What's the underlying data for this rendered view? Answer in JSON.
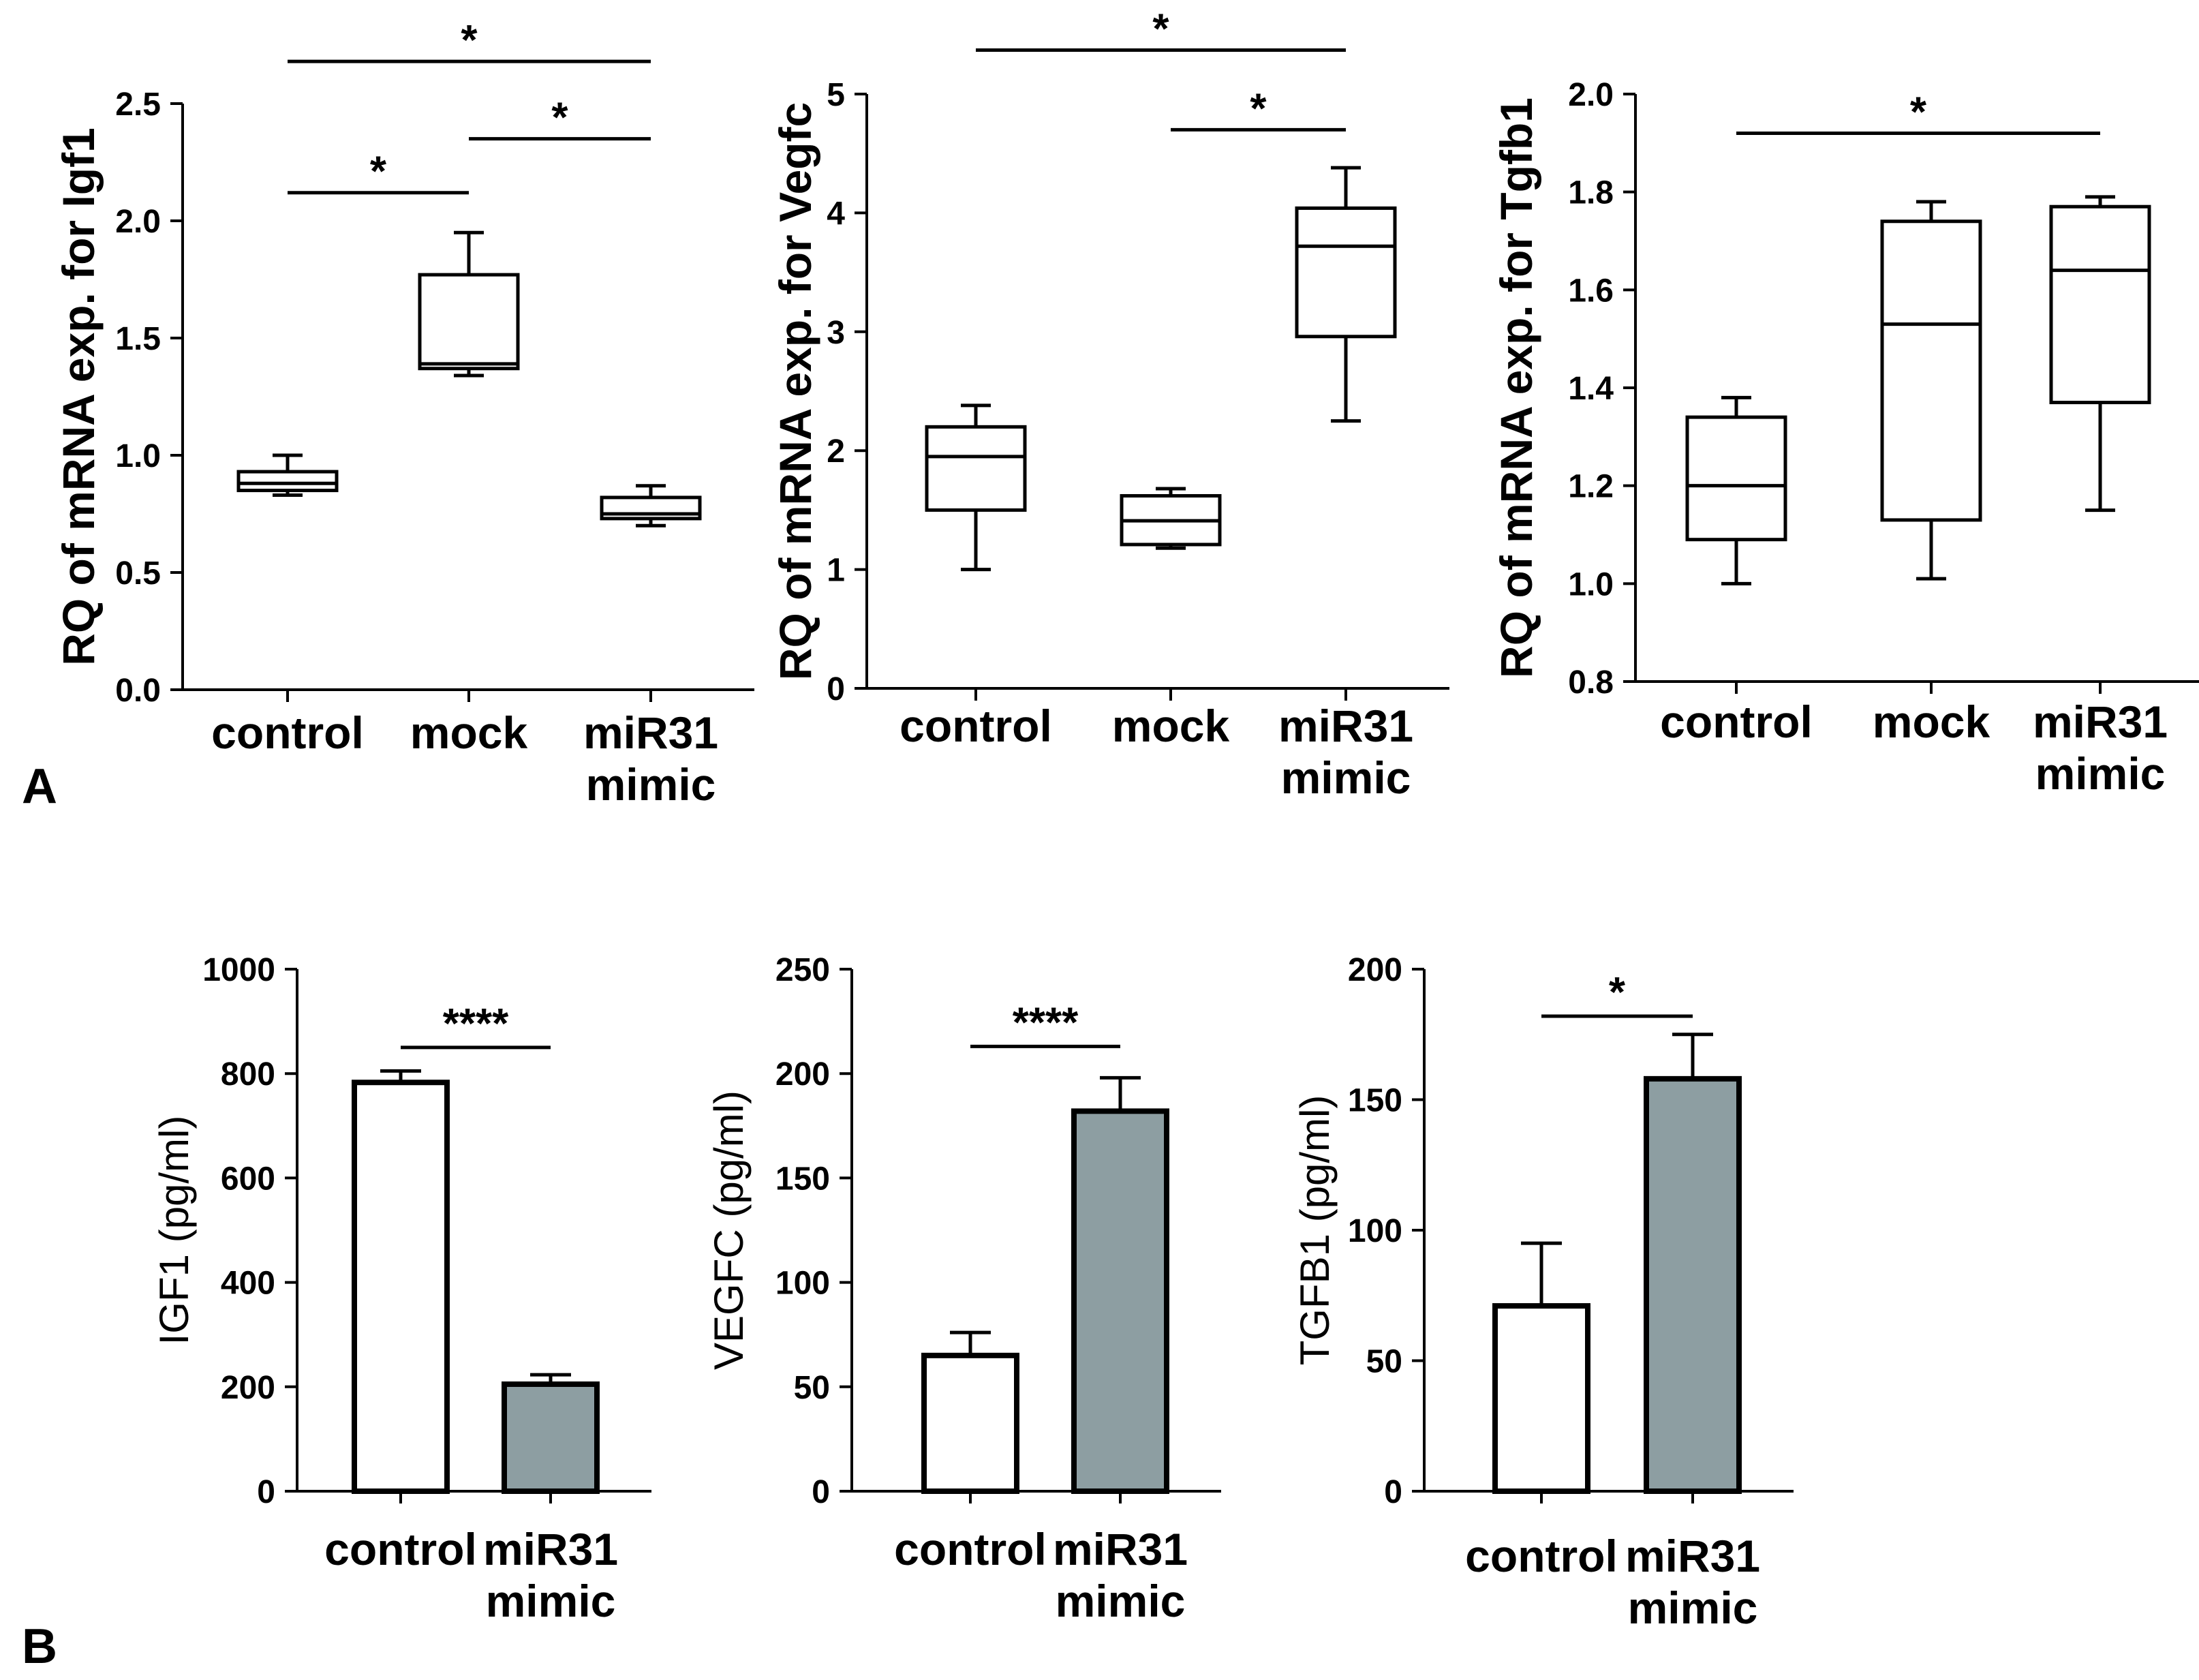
{
  "panel_labels": [
    "A",
    "B"
  ],
  "chart_data": [
    {
      "type": "box",
      "panel": "A",
      "ylabel": "RQ of mRNA exp. for Igf1",
      "ylim": [
        0.0,
        2.5
      ],
      "yticks": [
        "0.0",
        "0.5",
        "1.0",
        "1.5",
        "2.0",
        "2.5"
      ],
      "categories": [
        [
          "control"
        ],
        [
          "mock"
        ],
        [
          "miR31",
          "mimic"
        ]
      ],
      "boxes": [
        {
          "min": 0.83,
          "q1": 0.85,
          "median": 0.88,
          "q3": 0.93,
          "max": 1.0
        },
        {
          "min": 1.34,
          "q1": 1.37,
          "median": 1.39,
          "q3": 1.77,
          "max": 1.95
        },
        {
          "min": 0.7,
          "q1": 0.73,
          "median": 0.75,
          "q3": 0.82,
          "max": 0.87
        }
      ],
      "significance": [
        {
          "from": 0,
          "to": 2,
          "label": "*",
          "level": 2.68
        },
        {
          "from": 1,
          "to": 2,
          "label": "*",
          "level": 2.35
        },
        {
          "from": 0,
          "to": 1,
          "label": "*",
          "level": 2.12
        }
      ]
    },
    {
      "type": "box",
      "panel": "A",
      "ylabel": "RQ of mRNA exp. for Vegfc",
      "ylim": [
        0,
        5
      ],
      "yticks": [
        "0",
        "1",
        "2",
        "3",
        "4",
        "5"
      ],
      "categories": [
        [
          "control"
        ],
        [
          "mock"
        ],
        [
          "miR31",
          "mimic"
        ]
      ],
      "boxes": [
        {
          "min": 1.0,
          "q1": 1.5,
          "median": 1.95,
          "q3": 2.2,
          "max": 2.38
        },
        {
          "min": 1.18,
          "q1": 1.21,
          "median": 1.41,
          "q3": 1.62,
          "max": 1.68
        },
        {
          "min": 2.25,
          "q1": 2.96,
          "median": 3.72,
          "q3": 4.04,
          "max": 4.38
        }
      ],
      "significance": [
        {
          "from": 0,
          "to": 2,
          "label": "*",
          "level": 5.37
        },
        {
          "from": 1,
          "to": 2,
          "label": "*",
          "level": 4.7
        }
      ]
    },
    {
      "type": "box",
      "panel": "A",
      "ylabel": "RQ of mRNA exp. for Tgfb1",
      "ylim": [
        0.8,
        2.0
      ],
      "yticks": [
        "0.8",
        "1.0",
        "1.2",
        "1.4",
        "1.6",
        "1.8",
        "2.0"
      ],
      "categories": [
        [
          "control"
        ],
        [
          "mock"
        ],
        [
          "miR31",
          "mimic"
        ]
      ],
      "boxes": [
        {
          "min": 1.0,
          "q1": 1.09,
          "median": 1.2,
          "q3": 1.34,
          "max": 1.38
        },
        {
          "min": 1.01,
          "q1": 1.13,
          "median": 1.53,
          "q3": 1.74,
          "max": 1.78
        },
        {
          "min": 1.15,
          "q1": 1.37,
          "median": 1.64,
          "q3": 1.77,
          "max": 1.79
        }
      ],
      "significance": [
        {
          "from": 0,
          "to": 2,
          "label": "*",
          "level": 1.92
        }
      ]
    },
    {
      "type": "bar",
      "panel": "B",
      "ylabel": "IGF1 (pg/ml)",
      "ylim": [
        0,
        1000
      ],
      "yticks": [
        "0",
        "200",
        "400",
        "600",
        "800",
        "1000"
      ],
      "categories": [
        [
          "control"
        ],
        [
          "miR31",
          "mimic"
        ]
      ],
      "values": [
        783,
        205
      ],
      "errors": [
        22,
        18
      ],
      "colors": [
        "#ffffff",
        "#8d9ea2"
      ],
      "significance": [
        {
          "from": 0,
          "to": 1,
          "label": "****",
          "level": 850
        }
      ]
    },
    {
      "type": "bar",
      "panel": "B",
      "ylabel": "VEGFC (pg/ml)",
      "ylim": [
        0,
        250
      ],
      "yticks": [
        "0",
        "50",
        "100",
        "150",
        "200",
        "250"
      ],
      "categories": [
        [
          "control"
        ],
        [
          "miR31",
          "mimic"
        ]
      ],
      "values": [
        65,
        182
      ],
      "errors": [
        11,
        16
      ],
      "colors": [
        "#ffffff",
        "#8d9ea2"
      ],
      "significance": [
        {
          "from": 0,
          "to": 1,
          "label": "****",
          "level": 213
        }
      ]
    },
    {
      "type": "bar",
      "panel": "B",
      "ylabel": "TGFB1 (pg/ml)",
      "ylim": [
        0,
        200
      ],
      "yticks": [
        "0",
        "50",
        "100",
        "150",
        "200"
      ],
      "categories": [
        [
          "control"
        ],
        [
          "miR31",
          "mimic"
        ]
      ],
      "values": [
        71,
        158
      ],
      "errors": [
        24,
        17
      ],
      "colors": [
        "#ffffff",
        "#8d9ea2"
      ],
      "significance": [
        {
          "from": 0,
          "to": 1,
          "label": "*",
          "level": 182
        }
      ]
    }
  ]
}
